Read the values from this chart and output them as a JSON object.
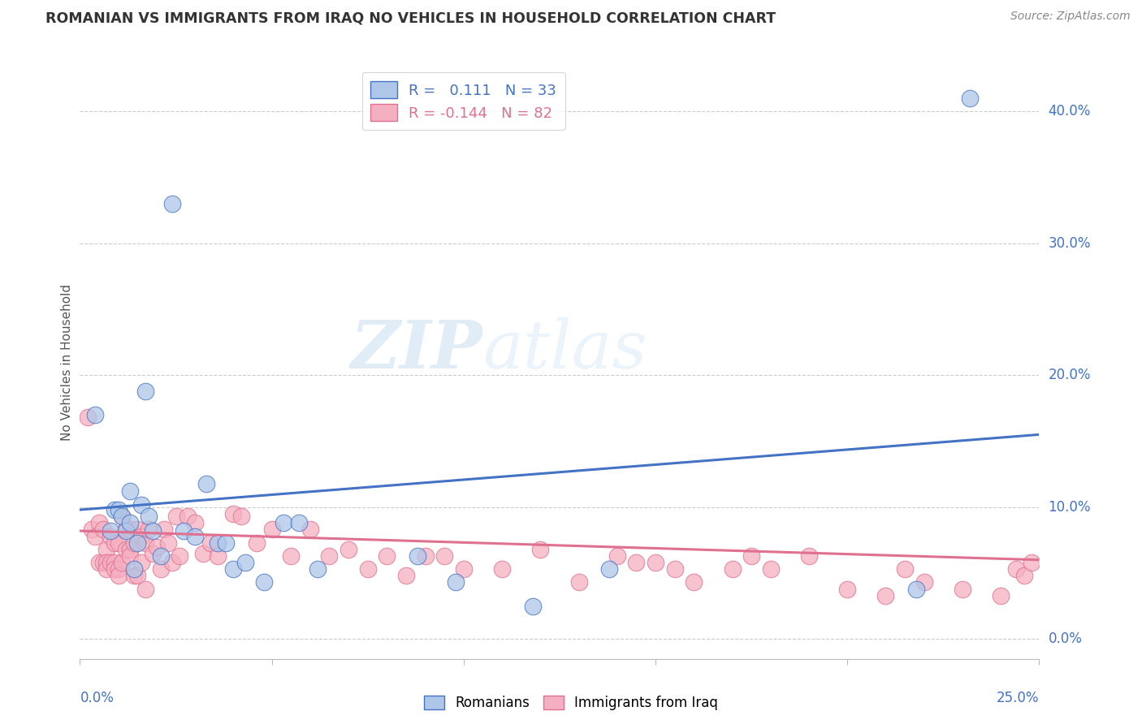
{
  "title": "ROMANIAN VS IMMIGRANTS FROM IRAQ NO VEHICLES IN HOUSEHOLD CORRELATION CHART",
  "source": "Source: ZipAtlas.com",
  "ylabel": "No Vehicles in Household",
  "ytick_values": [
    0.0,
    0.1,
    0.2,
    0.3,
    0.4
  ],
  "xlim": [
    0.0,
    0.25
  ],
  "ylim": [
    -0.015,
    0.435
  ],
  "romanian_color": "#aec6e8",
  "iraq_color": "#f4afc0",
  "romanian_line_color": "#4472c4",
  "iraq_line_color": "#e07090",
  "watermark_zip": "ZIP",
  "watermark_atlas": "atlas",
  "rom_line_x0": 0.0,
  "rom_line_y0": 0.098,
  "rom_line_x1": 0.25,
  "rom_line_y1": 0.155,
  "iraq_line_x0": 0.0,
  "iraq_line_y0": 0.082,
  "iraq_line_x1": 0.25,
  "iraq_line_y1": 0.06,
  "romanian_x": [
    0.004,
    0.008,
    0.009,
    0.01,
    0.011,
    0.012,
    0.013,
    0.013,
    0.014,
    0.015,
    0.016,
    0.017,
    0.018,
    0.019,
    0.021,
    0.024,
    0.027,
    0.03,
    0.033,
    0.036,
    0.038,
    0.04,
    0.043,
    0.048,
    0.053,
    0.057,
    0.062,
    0.088,
    0.098,
    0.118,
    0.138,
    0.218,
    0.232
  ],
  "romanian_y": [
    0.17,
    0.082,
    0.098,
    0.098,
    0.093,
    0.082,
    0.088,
    0.112,
    0.053,
    0.073,
    0.102,
    0.188,
    0.093,
    0.082,
    0.063,
    0.33,
    0.082,
    0.078,
    0.118,
    0.073,
    0.073,
    0.053,
    0.058,
    0.043,
    0.088,
    0.088,
    0.053,
    0.063,
    0.043,
    0.025,
    0.053,
    0.038,
    0.41
  ],
  "iraq_x": [
    0.002,
    0.003,
    0.004,
    0.005,
    0.005,
    0.006,
    0.006,
    0.007,
    0.007,
    0.007,
    0.008,
    0.008,
    0.009,
    0.009,
    0.009,
    0.01,
    0.01,
    0.01,
    0.011,
    0.011,
    0.012,
    0.012,
    0.013,
    0.013,
    0.013,
    0.014,
    0.014,
    0.015,
    0.015,
    0.016,
    0.016,
    0.017,
    0.017,
    0.018,
    0.019,
    0.02,
    0.021,
    0.022,
    0.023,
    0.024,
    0.025,
    0.026,
    0.028,
    0.03,
    0.032,
    0.034,
    0.036,
    0.04,
    0.042,
    0.046,
    0.05,
    0.055,
    0.06,
    0.065,
    0.07,
    0.075,
    0.08,
    0.085,
    0.09,
    0.095,
    0.1,
    0.11,
    0.12,
    0.13,
    0.14,
    0.145,
    0.15,
    0.155,
    0.16,
    0.17,
    0.175,
    0.18,
    0.19,
    0.2,
    0.21,
    0.215,
    0.22,
    0.23,
    0.24,
    0.244,
    0.246,
    0.248
  ],
  "iraq_y": [
    0.168,
    0.083,
    0.078,
    0.088,
    0.058,
    0.083,
    0.058,
    0.068,
    0.058,
    0.053,
    0.058,
    0.078,
    0.058,
    0.073,
    0.053,
    0.073,
    0.053,
    0.048,
    0.093,
    0.058,
    0.083,
    0.068,
    0.083,
    0.068,
    0.063,
    0.048,
    0.073,
    0.048,
    0.083,
    0.058,
    0.078,
    0.038,
    0.073,
    0.083,
    0.065,
    0.07,
    0.053,
    0.083,
    0.073,
    0.058,
    0.093,
    0.063,
    0.093,
    0.088,
    0.065,
    0.073,
    0.063,
    0.095,
    0.093,
    0.073,
    0.083,
    0.063,
    0.083,
    0.063,
    0.068,
    0.053,
    0.063,
    0.048,
    0.063,
    0.063,
    0.053,
    0.053,
    0.068,
    0.043,
    0.063,
    0.058,
    0.058,
    0.053,
    0.043,
    0.053,
    0.063,
    0.053,
    0.063,
    0.038,
    0.033,
    0.053,
    0.043,
    0.038,
    0.033,
    0.053,
    0.048,
    0.058
  ]
}
